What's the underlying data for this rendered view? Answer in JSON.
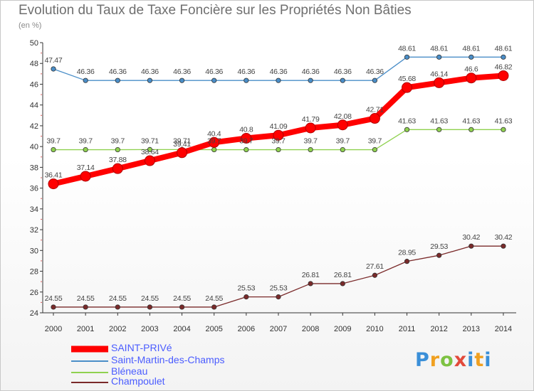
{
  "title": "Evolution du Taux de Taxe Foncière sur les Propriétés Non Bâties",
  "unit": "(en %)",
  "logo": "Proxiti",
  "chart_data": {
    "type": "line",
    "x": [
      2000,
      2001,
      2002,
      2003,
      2004,
      2005,
      2006,
      2007,
      2008,
      2009,
      2010,
      2011,
      2012,
      2013,
      2014
    ],
    "ylim": [
      24,
      50
    ],
    "yticks": [
      24,
      26,
      28,
      30,
      32,
      34,
      36,
      38,
      40,
      42,
      44,
      46,
      48,
      50
    ],
    "grid": false,
    "legend": "bottom-left",
    "series": [
      {
        "name": "SAINT-PRIVé",
        "color": "#ff0000",
        "values": [
          36.41,
          37.14,
          37.88,
          38.64,
          39.41,
          40.4,
          40.8,
          41.09,
          41.79,
          42.08,
          42.71,
          45.68,
          46.14,
          46.6,
          46.82
        ]
      },
      {
        "name": "Saint-Martin-des-Champs",
        "color": "#4a8ec8",
        "values": [
          47.47,
          46.36,
          46.36,
          46.36,
          46.36,
          46.36,
          46.36,
          46.36,
          46.36,
          46.36,
          46.36,
          48.61,
          48.61,
          48.61,
          48.61
        ]
      },
      {
        "name": "Bléneau",
        "color": "#8fd14f",
        "values": [
          39.7,
          39.7,
          39.7,
          39.71,
          39.71,
          39.7,
          39.7,
          39.7,
          39.7,
          39.7,
          39.7,
          41.63,
          41.63,
          41.63,
          41.63
        ]
      },
      {
        "name": "Champoulet",
        "color": "#7a2a2a",
        "values": [
          24.55,
          24.55,
          24.55,
          24.55,
          24.55,
          24.55,
          25.53,
          25.53,
          26.81,
          26.81,
          27.61,
          28.95,
          29.53,
          30.42,
          30.42
        ]
      }
    ]
  }
}
